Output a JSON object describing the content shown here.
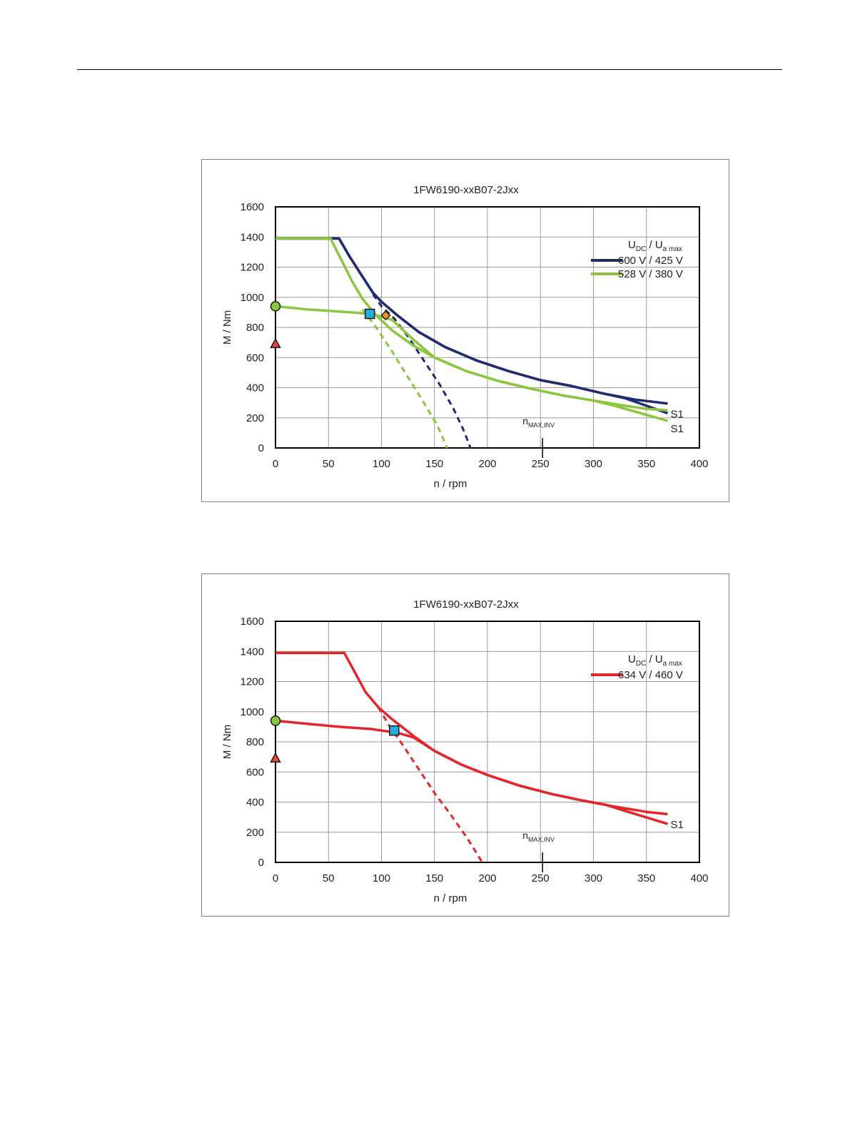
{
  "chart_data": [
    {
      "type": "line",
      "title": "1FW6190-xxB07-2Jxx",
      "xlabel": "n / rpm",
      "ylabel": "M / Nm",
      "xlim": [
        0,
        400
      ],
      "ylim": [
        0,
        1600
      ],
      "x_ticks": [
        "0",
        "50",
        "100",
        "150",
        "200",
        "250",
        "300",
        "350",
        "400"
      ],
      "y_ticks": [
        "0",
        "200",
        "400",
        "600",
        "800",
        "1000",
        "1200",
        "1400",
        "1600"
      ],
      "grid": true,
      "legend_position": "top-right",
      "legend_title": {
        "main_u": "U",
        "sub_dc": "DC",
        "slash": " / ",
        "main_u2": "U",
        "sub_amax": "a max"
      },
      "nmax_label": {
        "main": "n",
        "sub": "MAX,INV"
      },
      "nmax_x": 252,
      "series": [
        {
          "name": "600 V / 425 V",
          "color": "#1f2d6e",
          "dashed_limit": [
            [
              92,
              1020
            ],
            [
              100,
              940
            ],
            [
              112,
              860
            ],
            [
              125,
              740
            ],
            [
              140,
              580
            ],
            [
              155,
              420
            ],
            [
              168,
              260
            ],
            [
              178,
              110
            ],
            [
              184,
              0
            ]
          ],
          "peak": [
            [
              0,
              1390
            ],
            [
              60,
              1390
            ],
            [
              70,
              1270
            ],
            [
              80,
              1160
            ],
            [
              92,
              1030
            ],
            [
              100,
              970
            ],
            [
              115,
              880
            ],
            [
              135,
              770
            ],
            [
              160,
              670
            ],
            [
              190,
              580
            ],
            [
              220,
              510
            ],
            [
              250,
              450
            ],
            [
              280,
              410
            ],
            [
              310,
              360
            ],
            [
              340,
              320
            ],
            [
              370,
              295
            ]
          ],
          "s1": [
            [
              0,
              1390
            ],
            [
              60,
              1390
            ],
            [
              70,
              1270
            ],
            [
              80,
              1160
            ],
            [
              92,
              1030
            ],
            [
              100,
              970
            ],
            [
              115,
              880
            ],
            [
              135,
              770
            ],
            [
              160,
              670
            ],
            [
              190,
              580
            ],
            [
              220,
              510
            ],
            [
              250,
              450
            ],
            [
              280,
              410
            ],
            [
              310,
              360
            ],
            [
              330,
              330
            ],
            [
              350,
              280
            ],
            [
              370,
              230
            ]
          ],
          "s1_label": "S1"
        },
        {
          "name": "528 V / 380 V",
          "color": "#8cc63f",
          "dashed_limit": [
            [
              82,
              920
            ],
            [
              95,
              800
            ],
            [
              110,
              640
            ],
            [
              125,
              470
            ],
            [
              140,
              300
            ],
            [
              152,
              160
            ],
            [
              162,
              0
            ]
          ],
          "peak": [
            [
              0,
              1390
            ],
            [
              52,
              1390
            ],
            [
              62,
              1250
            ],
            [
              72,
              1110
            ],
            [
              82,
              990
            ],
            [
              95,
              880
            ],
            [
              110,
              780
            ],
            [
              130,
              680
            ],
            [
              150,
              600
            ],
            [
              180,
              510
            ],
            [
              210,
              445
            ],
            [
              240,
              395
            ],
            [
              270,
              350
            ],
            [
              300,
              315
            ],
            [
              330,
              280
            ],
            [
              350,
              260
            ],
            [
              370,
              250
            ]
          ],
          "s1": [
            [
              0,
              940
            ],
            [
              30,
              920
            ],
            [
              60,
              905
            ],
            [
              90,
              890
            ],
            [
              110,
              850
            ],
            [
              130,
              720
            ],
            [
              150,
              600
            ],
            [
              180,
              510
            ],
            [
              210,
              445
            ],
            [
              240,
              395
            ],
            [
              270,
              350
            ],
            [
              300,
              315
            ],
            [
              320,
              280
            ],
            [
              345,
              230
            ],
            [
              370,
              180
            ]
          ],
          "s1_label": "S1"
        }
      ],
      "markers": [
        {
          "shape": "circle",
          "x": 0,
          "y": 940,
          "color": "#8cc63f"
        },
        {
          "shape": "triangle",
          "x": 0,
          "y": 690,
          "color": "#e8443a"
        },
        {
          "shape": "square",
          "x": 89,
          "y": 890,
          "color": "#29abe2"
        },
        {
          "shape": "diamond",
          "x": 104,
          "y": 880,
          "color": "#f7941d"
        }
      ]
    },
    {
      "type": "line",
      "title": "1FW6190-xxB07-2Jxx",
      "xlabel": "n / rpm",
      "ylabel": "M / Nm",
      "xlim": [
        0,
        400
      ],
      "ylim": [
        0,
        1600
      ],
      "x_ticks": [
        "0",
        "50",
        "100",
        "150",
        "200",
        "250",
        "300",
        "350",
        "400"
      ],
      "y_ticks": [
        "0",
        "200",
        "400",
        "600",
        "800",
        "1000",
        "1200",
        "1400",
        "1600"
      ],
      "grid": true,
      "legend_position": "top-right",
      "legend_title": {
        "main_u": "U",
        "sub_dc": "DC",
        "slash": " / ",
        "main_u2": "U",
        "sub_amax": "a max"
      },
      "nmax_label": {
        "main": "n",
        "sub": "MAX,INV"
      },
      "nmax_x": 252,
      "series": [
        {
          "name": "634 V / 460 V",
          "color": "#e3262b",
          "dashed_limit": [
            [
              97,
              1030
            ],
            [
              108,
              900
            ],
            [
              120,
              780
            ],
            [
              135,
              620
            ],
            [
              150,
              460
            ],
            [
              165,
              320
            ],
            [
              180,
              170
            ],
            [
              190,
              60
            ],
            [
              195,
              0
            ]
          ],
          "peak": [
            [
              0,
              1390
            ],
            [
              65,
              1390
            ],
            [
              75,
              1260
            ],
            [
              85,
              1130
            ],
            [
              97,
              1030
            ],
            [
              110,
              950
            ],
            [
              130,
              840
            ],
            [
              150,
              740
            ],
            [
              175,
              650
            ],
            [
              200,
              580
            ],
            [
              230,
              510
            ],
            [
              260,
              455
            ],
            [
              290,
              410
            ],
            [
              320,
              370
            ],
            [
              350,
              335
            ],
            [
              370,
              320
            ]
          ],
          "s1": [
            [
              0,
              940
            ],
            [
              30,
              920
            ],
            [
              60,
              900
            ],
            [
              90,
              885
            ],
            [
              115,
              860
            ],
            [
              130,
              830
            ],
            [
              150,
              740
            ],
            [
              175,
              650
            ],
            [
              200,
              580
            ],
            [
              230,
              510
            ],
            [
              260,
              455
            ],
            [
              290,
              410
            ],
            [
              310,
              385
            ],
            [
              340,
              320
            ],
            [
              370,
              255
            ]
          ],
          "s1_label": "S1"
        }
      ],
      "markers": [
        {
          "shape": "circle",
          "x": 0,
          "y": 940,
          "color": "#8cc63f"
        },
        {
          "shape": "triangle",
          "x": 0,
          "y": 690,
          "color": "#e8443a"
        },
        {
          "shape": "square",
          "x": 112,
          "y": 875,
          "color": "#29abe2"
        }
      ]
    }
  ]
}
